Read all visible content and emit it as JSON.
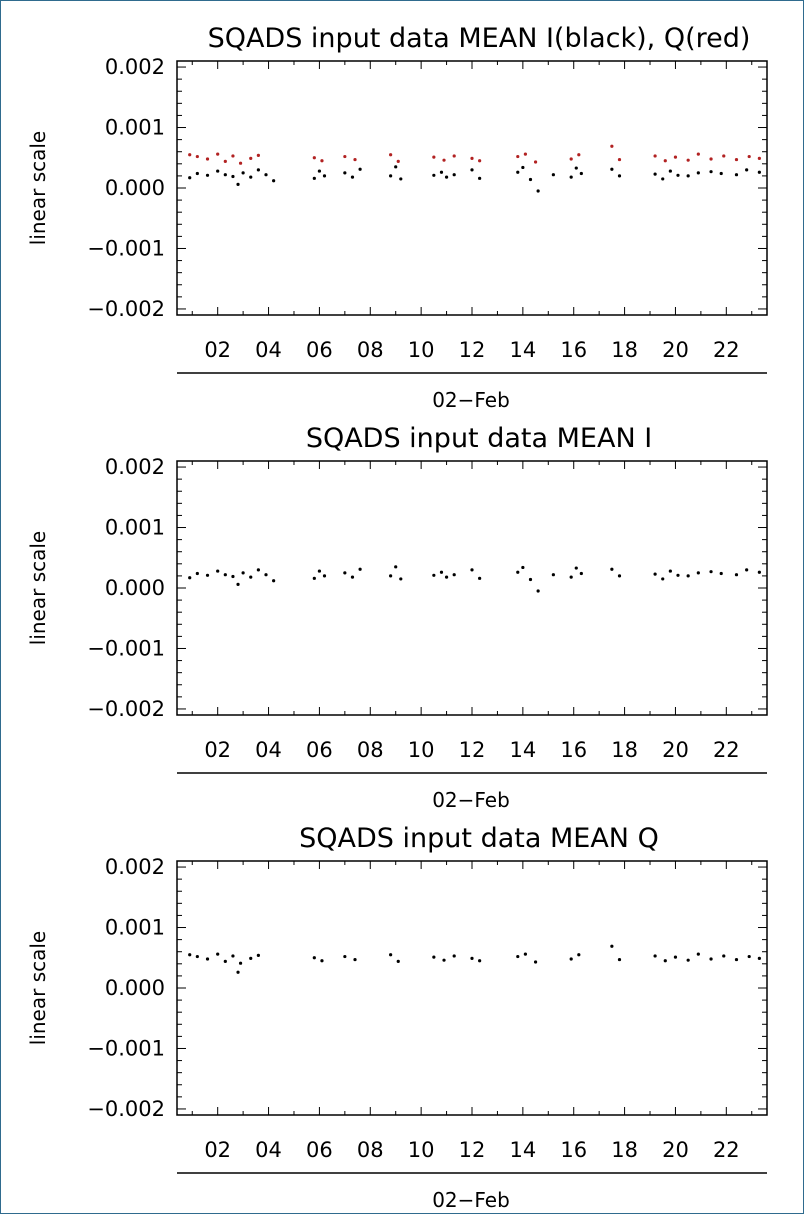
{
  "chart_data": [
    {
      "type": "scatter",
      "title": "SQADS input data MEAN I(black), Q(red)",
      "ylabel": "linear scale",
      "xlabel": "02−Feb",
      "xlim": [
        0.4,
        23.6
      ],
      "ylim": [
        -0.0021,
        0.0021
      ],
      "x_ticks": [
        "02",
        "04",
        "06",
        "08",
        "10",
        "12",
        "14",
        "16",
        "18",
        "20",
        "22"
      ],
      "x_tick_values": [
        2,
        4,
        6,
        8,
        10,
        12,
        14,
        16,
        18,
        20,
        22
      ],
      "y_ticks": [
        "0.002",
        "0.001",
        "0.000",
        "−0.001",
        "−0.002"
      ],
      "y_tick_values": [
        0.002,
        0.001,
        0.0,
        -0.001,
        -0.002
      ],
      "series": [
        {
          "name": "I",
          "color": "#000000",
          "x": [
            0.9,
            1.2,
            1.6,
            2.0,
            2.3,
            2.6,
            2.8,
            3.0,
            3.3,
            3.6,
            3.9,
            4.2,
            5.8,
            6.0,
            6.2,
            7.0,
            7.3,
            7.6,
            8.8,
            9.0,
            9.2,
            10.5,
            10.8,
            11.0,
            11.3,
            12.0,
            12.3,
            13.8,
            14.0,
            14.3,
            14.6,
            15.2,
            15.9,
            16.1,
            16.3,
            17.5,
            17.8,
            19.2,
            19.5,
            19.8,
            20.1,
            20.5,
            20.9,
            21.4,
            21.8,
            22.4,
            22.8,
            23.3
          ],
          "y": [
            0.00017,
            0.00024,
            0.00021,
            0.00028,
            0.00022,
            0.00019,
            6e-05,
            0.00025,
            0.00018,
            0.0003,
            0.00022,
            0.00012,
            0.00016,
            0.00028,
            0.0002,
            0.00025,
            0.00018,
            0.00031,
            0.0002,
            0.00035,
            0.00015,
            0.00021,
            0.00026,
            0.00018,
            0.00022,
            0.0003,
            0.00016,
            0.00026,
            0.00034,
            0.00014,
            -5e-05,
            0.00022,
            0.00018,
            0.00033,
            0.00024,
            0.00031,
            0.0002,
            0.00023,
            0.00015,
            0.00028,
            0.00021,
            0.0002,
            0.00025,
            0.00027,
            0.00024,
            0.00022,
            0.0003,
            0.00026
          ]
        },
        {
          "name": "Q",
          "color": "#b22222",
          "x": [
            0.9,
            1.2,
            1.6,
            2.0,
            2.3,
            2.6,
            2.9,
            3.3,
            3.6,
            5.8,
            6.1,
            7.0,
            7.4,
            8.8,
            9.1,
            10.5,
            10.9,
            11.3,
            12.0,
            12.3,
            13.8,
            14.1,
            14.5,
            15.9,
            16.2,
            17.5,
            17.8,
            19.2,
            19.6,
            20.0,
            20.5,
            20.9,
            21.4,
            21.9,
            22.4,
            22.9,
            23.3
          ],
          "y": [
            0.00055,
            0.00052,
            0.00048,
            0.00056,
            0.00044,
            0.00053,
            0.00041,
            0.00049,
            0.00054,
            0.0005,
            0.00045,
            0.00052,
            0.00047,
            0.00055,
            0.00044,
            0.00051,
            0.00046,
            0.00053,
            0.00049,
            0.00045,
            0.00052,
            0.00056,
            0.00043,
            0.00048,
            0.00055,
            0.00069,
            0.00047,
            0.00053,
            0.00045,
            0.00051,
            0.00046,
            0.00056,
            0.00048,
            0.00053,
            0.00047,
            0.00052,
            0.00049
          ]
        }
      ]
    },
    {
      "type": "scatter",
      "title": "SQADS input data MEAN I",
      "ylabel": "linear scale",
      "xlabel": "02−Feb",
      "xlim": [
        0.4,
        23.6
      ],
      "ylim": [
        -0.0021,
        0.0021
      ],
      "x_ticks": [
        "02",
        "04",
        "06",
        "08",
        "10",
        "12",
        "14",
        "16",
        "18",
        "20",
        "22"
      ],
      "x_tick_values": [
        2,
        4,
        6,
        8,
        10,
        12,
        14,
        16,
        18,
        20,
        22
      ],
      "y_ticks": [
        "0.002",
        "0.001",
        "0.000",
        "−0.001",
        "−0.002"
      ],
      "y_tick_values": [
        0.002,
        0.001,
        0.0,
        -0.001,
        -0.002
      ],
      "series": [
        {
          "color": "#000000",
          "x": [
            0.9,
            1.2,
            1.6,
            2.0,
            2.3,
            2.6,
            2.8,
            3.0,
            3.3,
            3.6,
            3.9,
            4.2,
            5.8,
            6.0,
            6.2,
            7.0,
            7.3,
            7.6,
            8.8,
            9.0,
            9.2,
            10.5,
            10.8,
            11.0,
            11.3,
            12.0,
            12.3,
            13.8,
            14.0,
            14.3,
            14.6,
            15.2,
            15.9,
            16.1,
            16.3,
            17.5,
            17.8,
            19.2,
            19.5,
            19.8,
            20.1,
            20.5,
            20.9,
            21.4,
            21.8,
            22.4,
            22.8,
            23.3
          ],
          "y": [
            0.00017,
            0.00024,
            0.00021,
            0.00028,
            0.00022,
            0.00019,
            6e-05,
            0.00025,
            0.00018,
            0.0003,
            0.00022,
            0.00012,
            0.00016,
            0.00028,
            0.0002,
            0.00025,
            0.00018,
            0.00031,
            0.0002,
            0.00035,
            0.00015,
            0.00021,
            0.00026,
            0.00018,
            0.00022,
            0.0003,
            0.00016,
            0.00026,
            0.00034,
            0.00014,
            -5e-05,
            0.00022,
            0.00018,
            0.00033,
            0.00024,
            0.00031,
            0.0002,
            0.00023,
            0.00015,
            0.00028,
            0.00021,
            0.0002,
            0.00025,
            0.00027,
            0.00024,
            0.00022,
            0.0003,
            0.00026
          ]
        }
      ]
    },
    {
      "type": "scatter",
      "title": "SQADS input data MEAN Q",
      "ylabel": "linear scale",
      "xlabel": "02−Feb",
      "xlim": [
        0.4,
        23.6
      ],
      "ylim": [
        -0.0021,
        0.0021
      ],
      "x_ticks": [
        "02",
        "04",
        "06",
        "08",
        "10",
        "12",
        "14",
        "16",
        "18",
        "20",
        "22"
      ],
      "x_tick_values": [
        2,
        4,
        6,
        8,
        10,
        12,
        14,
        16,
        18,
        20,
        22
      ],
      "y_ticks": [
        "0.002",
        "0.001",
        "0.000",
        "−0.001",
        "−0.002"
      ],
      "y_tick_values": [
        0.002,
        0.001,
        0.0,
        -0.001,
        -0.002
      ],
      "series": [
        {
          "color": "#000000",
          "x": [
            0.9,
            1.2,
            1.6,
            2.0,
            2.3,
            2.6,
            2.8,
            2.9,
            3.3,
            3.6,
            5.8,
            6.1,
            7.0,
            7.4,
            8.8,
            9.1,
            10.5,
            10.9,
            11.3,
            12.0,
            12.3,
            13.8,
            14.1,
            14.5,
            15.9,
            16.2,
            17.5,
            17.8,
            19.2,
            19.6,
            20.0,
            20.5,
            20.9,
            21.4,
            21.9,
            22.4,
            22.9,
            23.3
          ],
          "y": [
            0.00055,
            0.00052,
            0.00048,
            0.00056,
            0.00044,
            0.00053,
            0.00026,
            0.00041,
            0.00049,
            0.00054,
            0.0005,
            0.00045,
            0.00052,
            0.00047,
            0.00055,
            0.00044,
            0.00051,
            0.00046,
            0.00053,
            0.00049,
            0.00045,
            0.00052,
            0.00056,
            0.00043,
            0.00048,
            0.00055,
            0.00069,
            0.00047,
            0.00053,
            0.00045,
            0.00051,
            0.00046,
            0.00056,
            0.00048,
            0.00053,
            0.00047,
            0.00052,
            0.00049
          ]
        }
      ]
    }
  ]
}
